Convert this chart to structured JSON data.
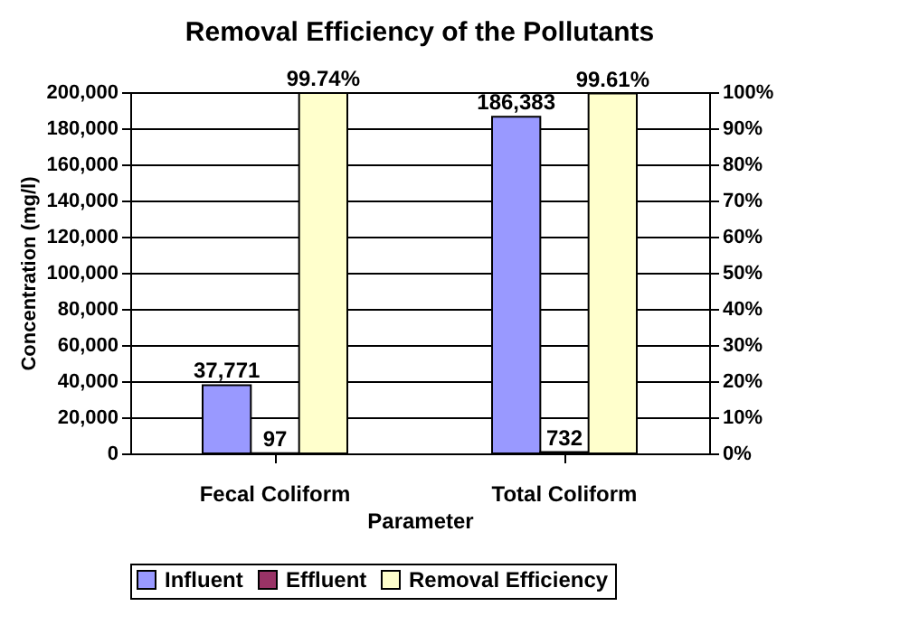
{
  "chart_data": {
    "type": "bar",
    "title": "Removal Efficiency of the Pollutants",
    "xlabel": "Parameter",
    "ylabel": "Concentration (mg/l)",
    "categories": [
      "Fecal Coliform",
      "Total Coliform"
    ],
    "series": [
      {
        "name": "Influent",
        "color": "#9999ff",
        "values": [
          37771,
          186383
        ],
        "value_labels": [
          "37,771",
          "186,383"
        ]
      },
      {
        "name": "Effluent",
        "color": "#993366",
        "values": [
          97,
          732
        ],
        "value_labels": [
          "97",
          "732"
        ]
      },
      {
        "name": "Removal Efficiency",
        "color": "#ffffcc",
        "axis": "y2",
        "values": [
          99.74,
          99.61
        ],
        "value_labels": [
          "99.74%",
          "99.61%"
        ]
      }
    ],
    "ylim": [
      0,
      200000
    ],
    "yticks": [
      0,
      {
        "value": 20000,
        "label": "20,000"
      },
      {
        "value": 40000,
        "label": "40,000"
      },
      {
        "value": 60000,
        "label": "60,000"
      },
      {
        "value": 80000,
        "label": "80,000"
      },
      {
        "value": 100000,
        "label": "100,000"
      },
      {
        "value": 120000,
        "label": "120,000"
      },
      {
        "value": 140000,
        "label": "140,000"
      },
      {
        "value": 160000,
        "label": "160,000"
      },
      {
        "value": 180000,
        "label": "180,000"
      },
      {
        "value": 200000,
        "label": "200,000"
      }
    ],
    "y2lim": [
      0,
      100
    ],
    "y2ticks": [
      {
        "value": 0,
        "label": "0%"
      },
      {
        "value": 10,
        "label": "10%"
      },
      {
        "value": 20,
        "label": "20%"
      },
      {
        "value": 30,
        "label": "30%"
      },
      {
        "value": 40,
        "label": "40%"
      },
      {
        "value": 50,
        "label": "50%"
      },
      {
        "value": 60,
        "label": "60%"
      },
      {
        "value": 70,
        "label": "70%"
      },
      {
        "value": 80,
        "label": "80%"
      },
      {
        "value": 90,
        "label": "90%"
      },
      {
        "value": 100,
        "label": "100%"
      }
    ],
    "grid": "y",
    "legend": "bottom"
  }
}
